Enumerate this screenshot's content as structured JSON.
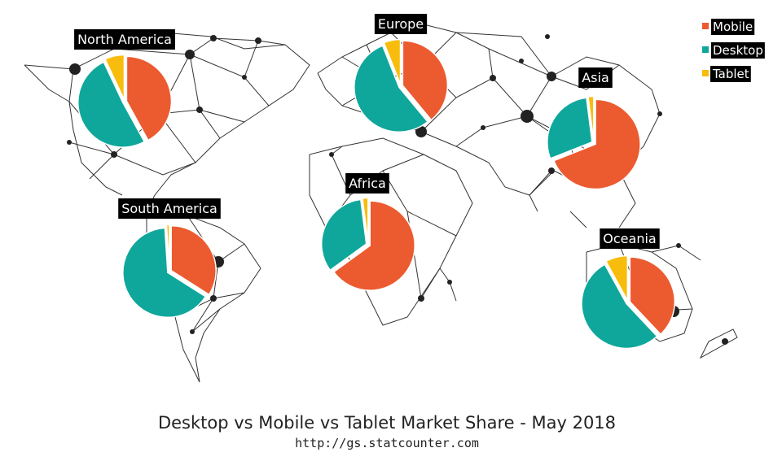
{
  "chart_data": {
    "type": "pie",
    "title": "Desktop vs Mobile vs Tablet Market Share - May 2018",
    "subtitle": "http://gs.statcounter.com",
    "legend_position": "top-right",
    "series_names": [
      "Mobile",
      "Desktop",
      "Tablet"
    ],
    "colors": {
      "Mobile": "#ec5a2f",
      "Desktop": "#0fa79b",
      "Tablet": "#f8bd0c"
    },
    "pies": [
      {
        "region": "North America",
        "values": {
          "Mobile": 42,
          "Desktop": 51,
          "Tablet": 7
        }
      },
      {
        "region": "Europe",
        "values": {
          "Mobile": 39,
          "Desktop": 55,
          "Tablet": 6
        }
      },
      {
        "region": "Asia",
        "values": {
          "Mobile": 69,
          "Desktop": 29,
          "Tablet": 2
        }
      },
      {
        "region": "South America",
        "values": {
          "Mobile": 34,
          "Desktop": 65,
          "Tablet": 1
        }
      },
      {
        "region": "Africa",
        "values": {
          "Mobile": 65,
          "Desktop": 33,
          "Tablet": 2
        }
      },
      {
        "region": "Oceania",
        "values": {
          "Mobile": 38,
          "Desktop": 54,
          "Tablet": 8
        }
      }
    ]
  }
}
